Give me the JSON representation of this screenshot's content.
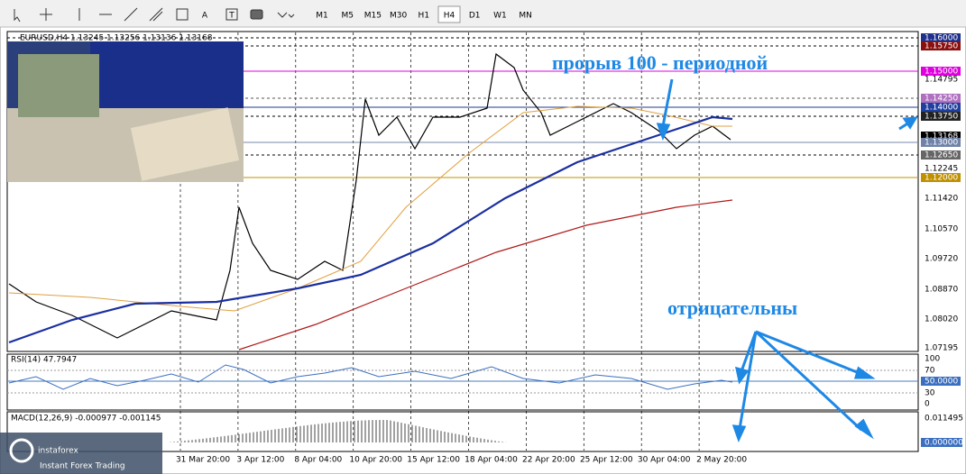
{
  "toolbar": {
    "tools": [
      "A",
      "T"
    ],
    "timeframes": [
      "M1",
      "M5",
      "M15",
      "M30",
      "H1",
      "H4",
      "D1",
      "W1",
      "MN"
    ],
    "active_timeframe": "H4"
  },
  "chart": {
    "header": "EURUSD,H4  1.13245 1.13256 1.13136 1.13168",
    "price_labels": [
      "1.16000",
      "1.15750",
      "1.15000",
      "1.14795",
      "1.14250",
      "1.14000",
      "1.13750",
      "1.13168",
      "1.13000",
      "1.12650",
      "1.12245",
      "1.12000",
      "1.11420",
      "1.10570",
      "1.09720",
      "1.08870",
      "1.08020",
      "1.07195"
    ],
    "dates": [
      "31 Mar 20:00",
      "3 Apr 12:00",
      "8 Apr 04:00",
      "10 Apr 20:00",
      "15 Apr 12:00",
      "18 Apr 04:00",
      "22 Apr 20:00",
      "25 Apr 12:00",
      "30 Apr 04:00",
      "2 May 20:00"
    ]
  },
  "rsi": {
    "header": "RSI(14) 47.7947",
    "labels": [
      "100",
      "70",
      "50.0000",
      "30",
      "0"
    ]
  },
  "macd": {
    "header": "MACD(12,26,9) -0.000977 -0.001145",
    "labels": [
      "0.011495",
      "0.000000"
    ]
  },
  "annotations": [
    "прорыв 100 - периодной",
    "отрицательны"
  ],
  "logo": {
    "name": "instaforex",
    "tagline": "Instant Forex Trading"
  }
}
